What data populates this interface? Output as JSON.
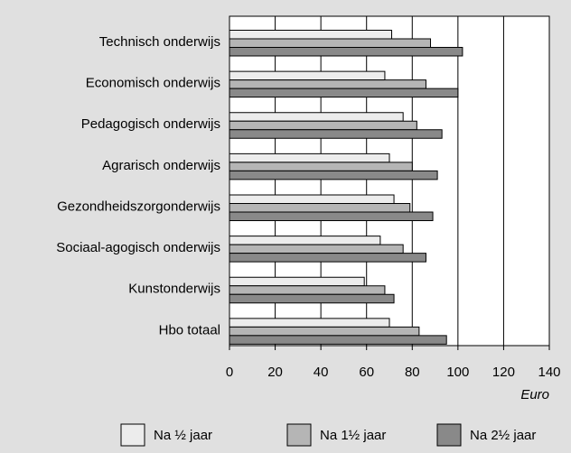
{
  "chart_data": {
    "type": "hbar",
    "categories": [
      "Technisch onderwijs",
      "Economisch onderwijs",
      "Pedagogisch onderwijs",
      "Agrarisch onderwijs",
      "Gezondheidszorgonderwijs",
      "Sociaal-agogisch onderwijs",
      "Kunstonderwijs",
      "Hbo totaal"
    ],
    "series": [
      {
        "name": "Na ½ jaar",
        "color": "#ececec",
        "values": [
          71,
          68,
          76,
          70,
          72,
          66,
          59,
          70
        ]
      },
      {
        "name": "Na 1½ jaar",
        "color": "#b5b5b5",
        "values": [
          88,
          86,
          82,
          80,
          79,
          76,
          68,
          83
        ]
      },
      {
        "name": "Na 2½ jaar",
        "color": "#898989",
        "values": [
          102,
          100,
          93,
          91,
          89,
          86,
          72,
          95
        ]
      }
    ],
    "x_label": "Euro",
    "xlim": [
      0,
      140
    ],
    "xticks": [
      0,
      20,
      40,
      60,
      80,
      100,
      120,
      140
    ],
    "grid": true,
    "legend": "bottom"
  }
}
